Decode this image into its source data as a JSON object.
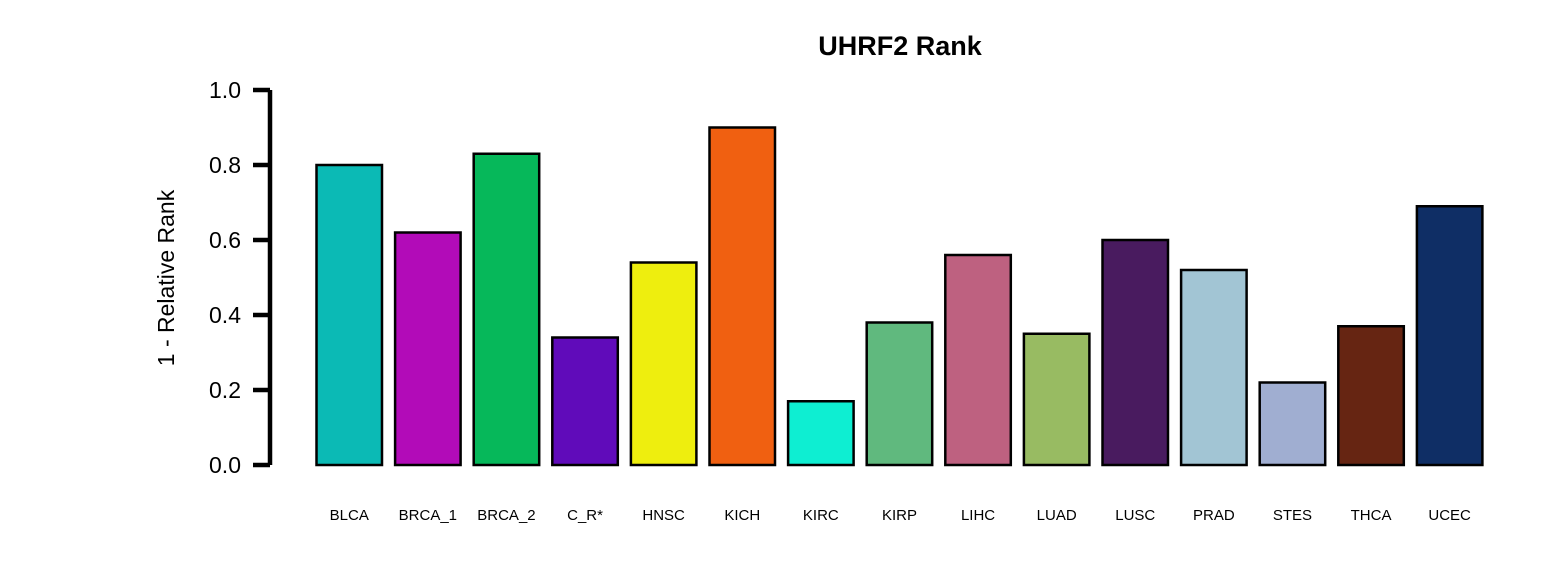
{
  "chart_data": {
    "type": "bar",
    "title": "UHRF2 Rank",
    "xlabel": "",
    "ylabel": "1 - Relative Rank",
    "ylim": [
      0,
      1
    ],
    "yticks": [
      "0.0",
      "0.2",
      "0.4",
      "0.6",
      "0.8",
      "1.0"
    ],
    "grid": false,
    "legend": "none",
    "categories": [
      "BLCA",
      "BRCA_1",
      "BRCA_2",
      "C_R*",
      "HNSC",
      "KICH",
      "KIRC",
      "KIRP",
      "LIHC",
      "LUAD",
      "LUSC",
      "PRAD",
      "STES",
      "THCA",
      "UCEC"
    ],
    "values": [
      0.8,
      0.62,
      0.83,
      0.34,
      0.54,
      0.9,
      0.17,
      0.38,
      0.56,
      0.35,
      0.6,
      0.52,
      0.22,
      0.37,
      0.69
    ],
    "colors": [
      "#0BBAB5",
      "#B20BB8",
      "#06B85A",
      "#600BBA",
      "#EEEE0E",
      "#F06011",
      "#0EEED2",
      "#60B97E",
      "#BE6180",
      "#98BB62",
      "#491B5F",
      "#A2C5D4",
      "#A0AED1",
      "#662512",
      "#0F2E65"
    ]
  }
}
